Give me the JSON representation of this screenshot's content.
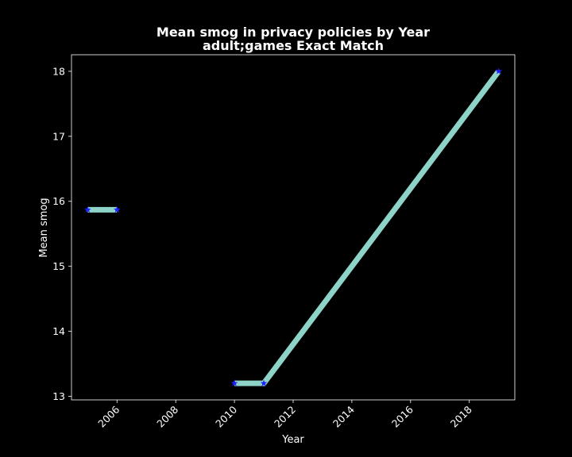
{
  "chart_data": {
    "type": "line",
    "title": "Mean smog in privacy policies by Year",
    "subtitle": "adult;games Exact Match",
    "xlabel": "Year",
    "ylabel": "Mean smog",
    "xlim": [
      2004.45,
      2019.55
    ],
    "ylim": [
      12.945,
      18.255
    ],
    "xticks": [
      2006,
      2008,
      2010,
      2012,
      2014,
      2016,
      2018
    ],
    "yticks": [
      13,
      14,
      15,
      16,
      17,
      18
    ],
    "grid": false,
    "legend": "none",
    "series": [
      {
        "segment": 1,
        "x": [
          2005,
          2006
        ],
        "y": [
          15.87,
          15.87
        ]
      },
      {
        "segment": 2,
        "x": [
          2010,
          2011,
          2019
        ],
        "y": [
          13.2,
          13.2,
          18.0
        ]
      }
    ],
    "colors": {
      "background": "#000000",
      "line": "#8dd3c7",
      "marker": "#1f1fff",
      "axes": "#ffffff",
      "text": "#ffffff"
    }
  }
}
